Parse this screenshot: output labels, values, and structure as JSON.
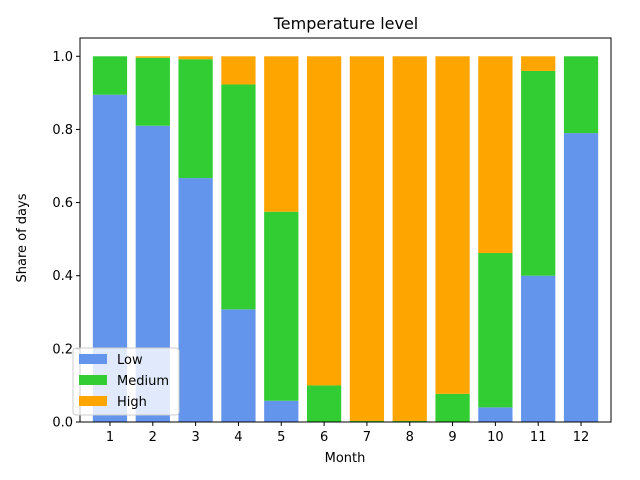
{
  "chart_data": {
    "type": "bar",
    "stacked": true,
    "title": "Temperature level",
    "xlabel": "Month",
    "ylabel": "Share of days",
    "categories": [
      "1",
      "2",
      "3",
      "4",
      "5",
      "6",
      "7",
      "8",
      "9",
      "10",
      "11",
      "12"
    ],
    "ylim": [
      0,
      1.05
    ],
    "yticks": [
      "0.0",
      "0.2",
      "0.4",
      "0.6",
      "0.8",
      "1.0"
    ],
    "ytick_values": [
      0,
      0.2,
      0.4,
      0.6,
      0.8,
      1.0
    ],
    "series": [
      {
        "name": "Low",
        "color": "#6495ED",
        "values": [
          0.895,
          0.81,
          0.667,
          0.308,
          0.058,
          0.0,
          0.0,
          0.0,
          0.0,
          0.04,
          0.4,
          0.79
        ]
      },
      {
        "name": "Medium",
        "color": "#32CD32",
        "values": [
          0.105,
          0.186,
          0.325,
          0.615,
          0.517,
          0.1,
          0.003,
          0.003,
          0.077,
          0.422,
          0.56,
          0.21
        ]
      },
      {
        "name": "High",
        "color": "#FFA500",
        "values": [
          0.0,
          0.004,
          0.008,
          0.077,
          0.425,
          0.9,
          0.997,
          0.997,
          0.923,
          0.538,
          0.04,
          0.0
        ]
      }
    ],
    "legend_position": "lower-left",
    "grid": false
  }
}
